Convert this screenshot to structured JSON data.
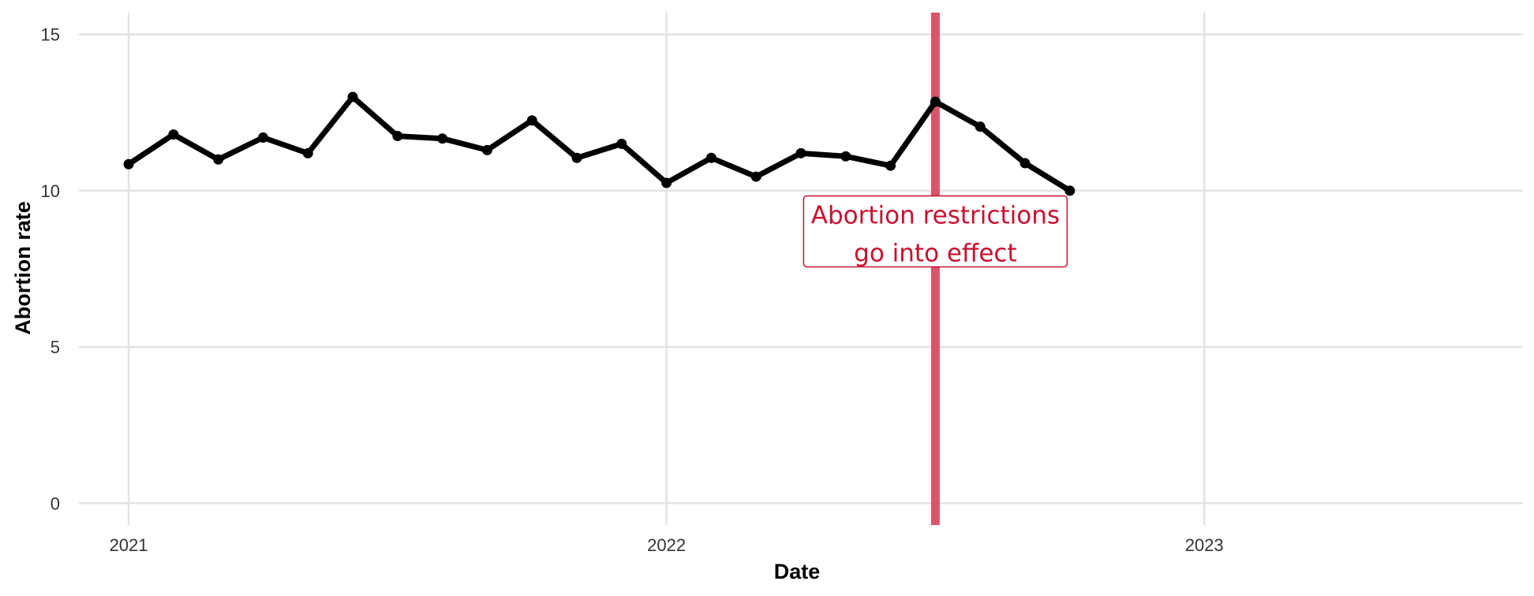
{
  "chart_data": {
    "type": "line",
    "title": "",
    "xlabel": "Date",
    "ylabel": "Abortion rate",
    "ylim": [
      -0.7,
      15.7
    ],
    "yticks": [
      0,
      5,
      10,
      15
    ],
    "xlim_months": [
      -1.11,
      31.11
    ],
    "xticks": [
      {
        "label": "2021",
        "month": 0
      },
      {
        "label": "2022",
        "month": 12
      },
      {
        "label": "2023",
        "month": 24
      }
    ],
    "series": [
      {
        "name": "Abortion rate",
        "color": "#000000",
        "x_months": [
          0,
          1,
          2,
          3,
          4,
          5,
          6,
          7,
          8,
          9,
          10,
          11,
          12,
          13,
          14,
          15,
          16,
          17,
          18,
          19,
          20,
          21
        ],
        "values": [
          10.85,
          11.8,
          11.0,
          11.7,
          11.2,
          13.0,
          11.75,
          11.67,
          11.3,
          12.25,
          11.05,
          11.5,
          10.25,
          11.05,
          10.45,
          11.2,
          11.1,
          10.8,
          12.85,
          12.05,
          10.88,
          10.0
        ]
      }
    ],
    "event": {
      "month": 18,
      "color": "#d9536a",
      "annotation": {
        "line1": "Abortion restrictions",
        "line2": "go into effect",
        "y": 8.7,
        "color": "#c8102e"
      }
    },
    "grid": true
  }
}
